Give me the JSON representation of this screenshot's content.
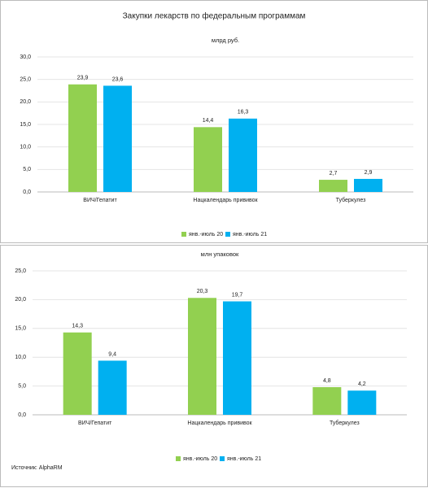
{
  "title": "Закупки лекарств по федеральным программам",
  "source": "Источник: AlphaRM",
  "chart_data": [
    {
      "type": "bar",
      "subtitle": "млрд руб.",
      "categories": [
        "ВИЧ/Гепатит",
        "Нацкалендарь прививок",
        "Туберкулез"
      ],
      "series": [
        {
          "name": "янв.-июль 20",
          "color": "#92d050",
          "values": [
            23.9,
            14.4,
            2.7
          ],
          "value_labels": [
            "23,9",
            "14,4",
            "2,7"
          ]
        },
        {
          "name": "янв.-июль 21",
          "color": "#00b0f0",
          "values": [
            23.6,
            16.3,
            2.9
          ],
          "value_labels": [
            "23,6",
            "16,3",
            "2,9"
          ]
        }
      ],
      "ylim": [
        0,
        30
      ],
      "yticks": [
        {
          "value": 0,
          "label": "0,0"
        },
        {
          "value": 5,
          "label": "5,0"
        },
        {
          "value": 10,
          "label": "10,0"
        },
        {
          "value": 15,
          "label": "15,0"
        },
        {
          "value": 20,
          "label": "20,0"
        },
        {
          "value": 25,
          "label": "25,0"
        },
        {
          "value": 30,
          "label": "30,0"
        }
      ],
      "legend": "bottom"
    },
    {
      "type": "bar",
      "subtitle": "млн упаковок",
      "categories": [
        "ВИЧ/Гепатит",
        "Нацкалендарь прививок",
        "Туберкулез"
      ],
      "series": [
        {
          "name": "янв.-июль 20",
          "color": "#92d050",
          "values": [
            14.3,
            20.3,
            4.8
          ],
          "value_labels": [
            "14,3",
            "20,3",
            "4,8"
          ]
        },
        {
          "name": "янв.-июль 21",
          "color": "#00b0f0",
          "values": [
            9.4,
            19.7,
            4.2
          ],
          "value_labels": [
            "9,4",
            "19,7",
            "4,2"
          ]
        }
      ],
      "ylim": [
        0,
        25
      ],
      "yticks": [
        {
          "value": 0,
          "label": "0,0"
        },
        {
          "value": 5,
          "label": "5,0"
        },
        {
          "value": 10,
          "label": "10,0"
        },
        {
          "value": 15,
          "label": "15,0"
        },
        {
          "value": 20,
          "label": "20,0"
        },
        {
          "value": 25,
          "label": "25,0"
        }
      ],
      "legend": "bottom"
    }
  ]
}
